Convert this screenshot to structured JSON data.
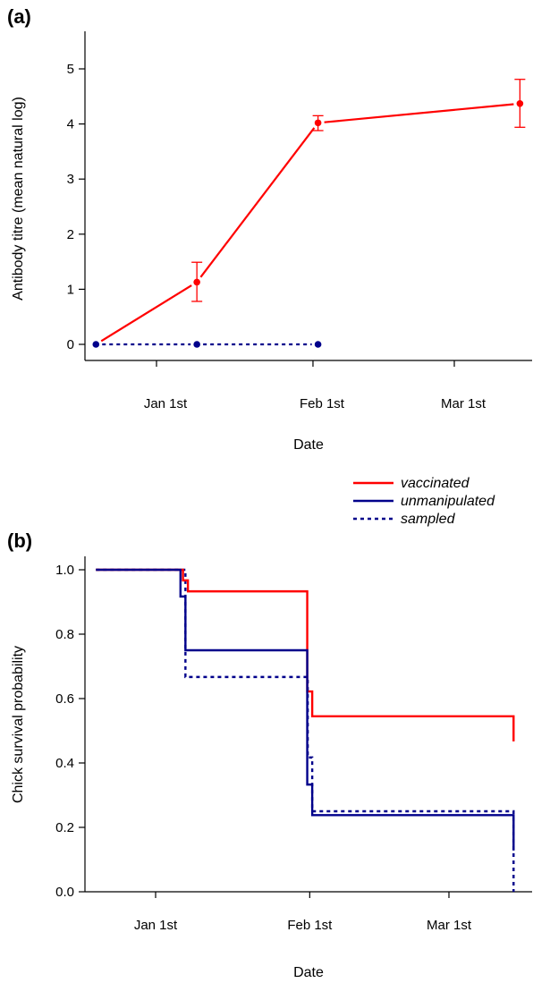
{
  "chart_data": [
    {
      "type": "line",
      "panel_label": "(a)",
      "xlabel": "Date",
      "ylabel": "Antibody titre (mean natural log)",
      "ylim": [
        -0.4,
        5.4
      ],
      "xlim": [
        -17,
        83
      ],
      "x_ticks": [
        {
          "value": 0,
          "label": "Jan 1st"
        },
        {
          "value": 31,
          "label": "Feb 1st"
        },
        {
          "value": 59,
          "label": "Mar 1st"
        }
      ],
      "y_ticks": [
        {
          "value": 0,
          "label": "0"
        },
        {
          "value": 1,
          "label": "1"
        },
        {
          "value": 2,
          "label": "2"
        },
        {
          "value": 3,
          "label": "3"
        },
        {
          "value": 4,
          "label": "4"
        },
        {
          "value": 5,
          "label": "5"
        }
      ],
      "series": [
        {
          "name": "vaccinated",
          "color": "#ff0000",
          "style": "solid",
          "points": [
            {
              "x": -12,
              "y": 0.0,
              "lower": null,
              "upper": null
            },
            {
              "x": 8,
              "y": 1.13,
              "lower": 0.78,
              "upper": 1.49
            },
            {
              "x": 32,
              "y": 4.02,
              "lower": 3.88,
              "upper": 4.15
            },
            {
              "x": 72,
              "y": 4.37,
              "lower": 3.94,
              "upper": 4.81
            }
          ]
        },
        {
          "name": "sampled",
          "color": "#00008b",
          "style": "dashed",
          "points": [
            {
              "x": -12,
              "y": 0.0
            },
            {
              "x": 8,
              "y": 0.0
            },
            {
              "x": 32,
              "y": 0.0
            }
          ]
        }
      ]
    },
    {
      "type": "line",
      "subtype": "step",
      "panel_label": "(b)",
      "xlabel": "Date",
      "ylabel": "Chick survival probability",
      "ylim": [
        0.0,
        1.0
      ],
      "xlim": [
        -12,
        83
      ],
      "x_ticks": [
        {
          "value": 0,
          "label": "Jan 1st"
        },
        {
          "value": 31,
          "label": "Feb 1st"
        },
        {
          "value": 59,
          "label": "Mar 1st"
        }
      ],
      "y_ticks": [
        {
          "value": 0.0,
          "label": "0.0"
        },
        {
          "value": 0.2,
          "label": "0.2"
        },
        {
          "value": 0.4,
          "label": "0.4"
        },
        {
          "value": 0.6,
          "label": "0.6"
        },
        {
          "value": 0.8,
          "label": "0.8"
        },
        {
          "value": 1.0,
          "label": "1.0"
        }
      ],
      "series": [
        {
          "name": "vaccinated",
          "color": "#ff0000",
          "style": "solid",
          "steps": [
            {
              "x": -12,
              "y": 1.0
            },
            {
              "x": 5.5,
              "y": 0.967
            },
            {
              "x": 6.5,
              "y": 0.933
            },
            {
              "x": 30.5,
              "y": 0.622
            },
            {
              "x": 31.5,
              "y": 0.545
            },
            {
              "x": 72,
              "y": 0.467
            }
          ],
          "x_end": 72
        },
        {
          "name": "unmanipulated",
          "color": "#00008b",
          "style": "solid",
          "steps": [
            {
              "x": -12,
              "y": 1.0
            },
            {
              "x": 5,
              "y": 0.917
            },
            {
              "x": 6,
              "y": 0.75
            },
            {
              "x": 30.5,
              "y": 0.333
            },
            {
              "x": 31.5,
              "y": 0.238
            },
            {
              "x": 72,
              "y": 0.128
            }
          ],
          "x_end": 72
        },
        {
          "name": "sampled",
          "color": "#00008b",
          "style": "dashed",
          "steps": [
            {
              "x": -12,
              "y": 1.0
            },
            {
              "x": 6,
              "y": 0.667
            },
            {
              "x": 30.6,
              "y": 0.417
            },
            {
              "x": 31.5,
              "y": 0.25
            },
            {
              "x": 72,
              "y": 0.0
            }
          ],
          "x_end": 72
        }
      ]
    }
  ],
  "legend": {
    "placement": "between-panels-right",
    "entries": [
      {
        "label": "vaccinated",
        "color": "#ff0000",
        "style": "solid"
      },
      {
        "label": "unmanipulated",
        "color": "#00008b",
        "style": "solid"
      },
      {
        "label": "sampled",
        "color": "#00008b",
        "style": "dashed"
      }
    ]
  }
}
